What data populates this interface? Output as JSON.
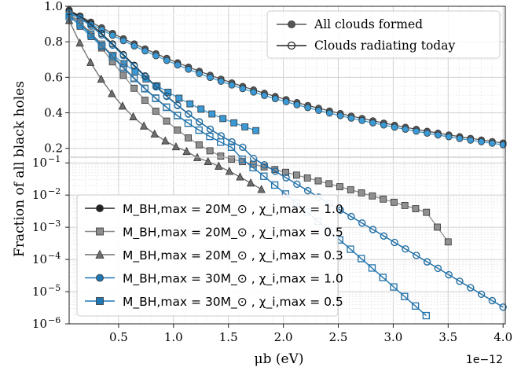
{
  "chart_data": {
    "type": "line",
    "xlabel": "μb (eV)",
    "ylabel": "Fraction of all black holes",
    "x_offset_label": "1e−12",
    "xlim": [
      0.05,
      4.02
    ],
    "ylim_linear": [
      0.15,
      1.0
    ],
    "ylim_log": [
      1e-06,
      0.15
    ],
    "x_ticks": [
      "0.5",
      "1.0",
      "1.5",
      "2.0",
      "2.5",
      "3.0",
      "3.5",
      "4.0"
    ],
    "y_ticks_linear": [
      "0.2",
      "0.4",
      "0.6",
      "0.8",
      "1.0"
    ],
    "y_ticks_log": [
      "10",
      "10",
      "10",
      "10",
      "10",
      "10"
    ],
    "y_ticks_log_exp": [
      "-1",
      "-2",
      "-3",
      "-4",
      "-5",
      "-6"
    ],
    "style_legend": [
      {
        "label": "All clouds formed",
        "marker": "filled"
      },
      {
        "label": "Clouds radiating today",
        "marker": "open"
      }
    ],
    "series_legend": [
      {
        "name": "M_BH,max = 20M_⊙ , χ_i,max = 1.0",
        "color": "#222222",
        "marker": "circle"
      },
      {
        "name": "M_BH,max = 20M_⊙ , χ_i,max = 0.5",
        "color": "#8c8c8c",
        "marker": "square"
      },
      {
        "name": "M_BH,max = 20M_⊙ , χ_i,max = 0.3",
        "color": "#6e6e6e",
        "marker": "triangle"
      },
      {
        "name": "M_BH,max = 30M_⊙ , χ_i,max = 1.0",
        "color": "#1f77b4",
        "marker": "circle"
      },
      {
        "name": "M_BH,max = 30M_⊙ , χ_i,max = 0.5",
        "color": "#1f77b4",
        "marker": "square"
      }
    ],
    "series": [
      {
        "name": "M_BH,max = 20M_⊙ , χ_i,max = 1.0 — all clouds formed",
        "color": "#555555",
        "marker": "circle",
        "fill": "filled",
        "x_start": 0.05,
        "x_end": 4.0,
        "y_start": 0.98,
        "y_end": 0.23,
        "shape": "exp"
      },
      {
        "name": "M_BH,max = 30M_⊙ , χ_i,max = 1.0 — all clouds formed",
        "color": "#3b9ad6",
        "marker": "circle",
        "fill": "filled",
        "x_start": 0.05,
        "x_end": 4.0,
        "y_start": 0.97,
        "y_end": 0.22,
        "shape": "exp"
      },
      {
        "name": "M_BH,max = 20M_⊙ , χ_i,max = 0.5 — all clouds formed",
        "color": "#909090",
        "marker": "square",
        "fill": "filled",
        "x_start": 0.05,
        "x_end": 3.5,
        "y_start": 0.96,
        "y_end": 0.00035,
        "shape": "exp-cut",
        "y_knee": 0.003,
        "x_knee": 3.3
      },
      {
        "name": "M_BH,max = 30M_⊙ , χ_i,max = 0.5 — all clouds formed",
        "color": "#3b9ad6",
        "marker": "square",
        "fill": "filled",
        "x_start": 0.05,
        "x_end": 1.75,
        "y_start": 0.95,
        "y_end": 0.3,
        "shape": "exp"
      },
      {
        "name": "M_BH,max = 20M_⊙ , χ_i,max = 0.3 — all clouds formed",
        "color": "#6e6e6e",
        "marker": "triangle",
        "fill": "filled",
        "x_start": 0.05,
        "x_end": 1.8,
        "y_start": 0.92,
        "y_end": 0.015,
        "shape": "drop",
        "x_knee": 1.05,
        "y_knee": 0.2
      },
      {
        "name": "M_BH,max = 20M_⊙ , χ_i,max = 1.0 — clouds radiating today",
        "color": "#222222",
        "marker": "circle",
        "fill": "open",
        "x_start": 0.05,
        "x_end": 4.0,
        "y_start": 0.97,
        "y_end": 3.3e-06,
        "shape": "radiating"
      },
      {
        "name": "M_BH,max = 30M_⊙ , χ_i,max = 1.0 — clouds radiating today",
        "color": "#1f77b4",
        "marker": "circle",
        "fill": "open",
        "x_start": 0.05,
        "x_end": 4.0,
        "y_start": 0.96,
        "y_end": 3.3e-06,
        "shape": "radiating"
      },
      {
        "name": "M_BH,max = 20M_⊙ , χ_i,max = 0.5 — clouds radiating today",
        "color": "#777777",
        "marker": "square",
        "fill": "open",
        "x_start": 0.05,
        "x_end": 3.3,
        "y_start": 0.95,
        "y_end": 1.8e-06,
        "shape": "radiating-fast"
      },
      {
        "name": "M_BH,max = 30M_⊙ , χ_i,max = 0.5 — clouds radiating today",
        "color": "#1f77b4",
        "marker": "square",
        "fill": "open",
        "x_start": 0.05,
        "x_end": 3.3,
        "y_start": 0.94,
        "y_end": 1.8e-06,
        "shape": "radiating-fast"
      }
    ]
  }
}
